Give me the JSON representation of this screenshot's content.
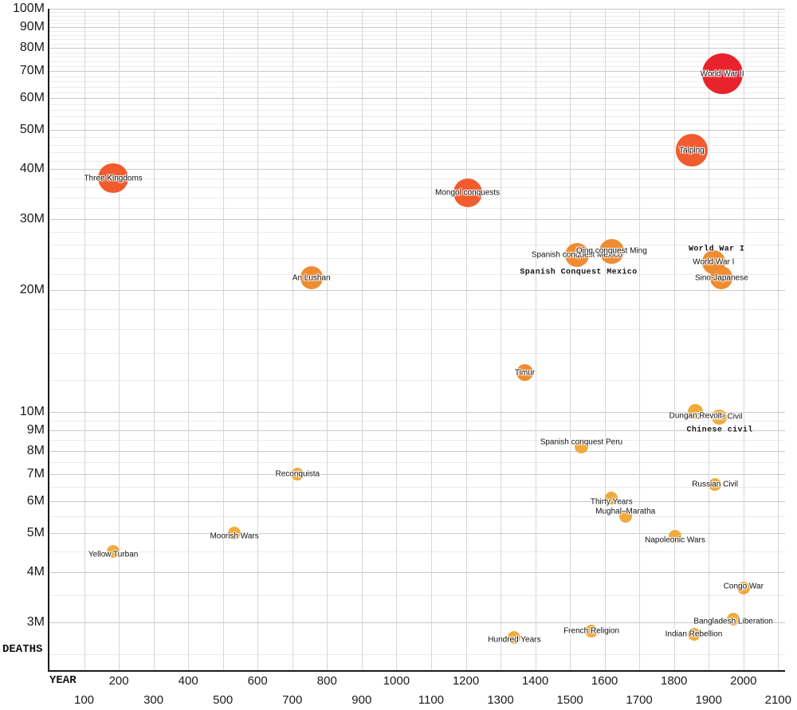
{
  "chart_data": {
    "type": "scatter",
    "subtype": "bubble",
    "title": "",
    "xlabel": "YEAR",
    "ylabel": "DEATHS",
    "grid": true,
    "x_axis": {
      "scale": "linear",
      "min_year": 0,
      "max_year": 2120,
      "gridline_step_years": 100,
      "ticks_upper_row": [
        200,
        400,
        600,
        800,
        1000,
        1200,
        1400,
        1600,
        1800,
        2000
      ],
      "ticks_lower_row": [
        100,
        300,
        500,
        700,
        900,
        1100,
        1300,
        1500,
        1700,
        1900,
        2100
      ]
    },
    "y_axis": {
      "scale": "log",
      "units": "deaths, millions",
      "min_value_m": 2.28,
      "max_value_m": 100,
      "ticks": [
        {
          "label": "100M",
          "value": 100
        },
        {
          "label": "90M",
          "value": 90
        },
        {
          "label": "80M",
          "value": 80
        },
        {
          "label": "70M",
          "value": 70
        },
        {
          "label": "60M",
          "value": 60
        },
        {
          "label": "50M",
          "value": 50
        },
        {
          "label": "40M",
          "value": 40
        },
        {
          "label": "30M",
          "value": 30
        },
        {
          "label": "20M",
          "value": 20
        },
        {
          "label": "10M",
          "value": 10
        },
        {
          "label": "9M",
          "value": 9
        },
        {
          "label": "8M",
          "value": 8
        },
        {
          "label": "7M",
          "value": 7
        },
        {
          "label": "6M",
          "value": 6
        },
        {
          "label": "5M",
          "value": 5
        },
        {
          "label": "4M",
          "value": 4
        },
        {
          "label": "3M",
          "value": 3
        }
      ]
    },
    "palette": {
      "red": "#e8232d",
      "orange_red": "#f15b2d",
      "orange": "#ef8c31",
      "amber": "#f0aa3d"
    },
    "color_rule": "deaths>=60M red; >=30M orange_red; >=12M orange; else amber",
    "points": [
      {
        "label": "Three Kingdoms",
        "year": 184,
        "deaths_m": 38
      },
      {
        "label": "Yellow Turban",
        "year": 184,
        "deaths_m": 4.5,
        "label_dy": 4
      },
      {
        "label": "Moorish Wars",
        "year": 533,
        "deaths_m": 5.0,
        "label_dy": 4
      },
      {
        "label": "Reconquista",
        "year": 715,
        "deaths_m": 7.0
      },
      {
        "label": "An Lushan",
        "year": 755,
        "deaths_m": 21.5
      },
      {
        "label": "Mongol conquests",
        "year": 1205,
        "deaths_m": 35
      },
      {
        "label": "Hundred Years",
        "year": 1340,
        "deaths_m": 2.75,
        "label_dy": 3
      },
      {
        "label": "Timur",
        "year": 1370,
        "deaths_m": 12.5
      },
      {
        "label": "Spanish conquest Mexico",
        "year": 1520,
        "deaths_m": 24.5
      },
      {
        "label": "Spanish conquest Peru",
        "year": 1533,
        "deaths_m": 8.2,
        "label_dy": -5
      },
      {
        "label": "French Religion",
        "year": 1562,
        "deaths_m": 2.85
      },
      {
        "label": "Qing conquest Ming",
        "year": 1620,
        "deaths_m": 25
      },
      {
        "label": "Thirty Years",
        "year": 1620,
        "deaths_m": 6.1,
        "label_dy": 5
      },
      {
        "label": "Mughal–Maratha",
        "year": 1660,
        "deaths_m": 5.5,
        "label_dy": -6
      },
      {
        "label": "Napoleonic Wars",
        "year": 1803,
        "deaths_m": 4.9,
        "label_dy": 5
      },
      {
        "label": "Taiping",
        "year": 1851,
        "deaths_m": 44.5
      },
      {
        "label": "Indian Rebellion",
        "year": 1857,
        "deaths_m": 2.8
      },
      {
        "label": "Chinese Civil",
        "year": 1930,
        "deaths_m": 9.7
      },
      {
        "label": "Dungan Revolt",
        "year": 1862,
        "deaths_m": 10.0,
        "label_dy": 5
      },
      {
        "label": "World War I",
        "year": 1914,
        "deaths_m": 23.5
      },
      {
        "label": "Sino-Japanese",
        "year": 1937,
        "deaths_m": 21.5
      },
      {
        "label": "Russian Civil",
        "year": 1918,
        "deaths_m": 6.6
      },
      {
        "label": "World War II",
        "year": 1939,
        "deaths_m": 69
      },
      {
        "label": "Bangladesh Liberation",
        "year": 1971,
        "deaths_m": 3.05,
        "label_dy": 3
      },
      {
        "label": "Congo War",
        "year": 2000,
        "deaths_m": 3.65,
        "label_dy": -2
      }
    ],
    "annotations": [
      {
        "text": "World War I",
        "year": 1923,
        "deaths_m": 25.3
      },
      {
        "text": "Spanish Conquest Mexico",
        "year": 1525,
        "deaths_m": 22.2
      },
      {
        "text": "Chinese civil",
        "year": 1932,
        "deaths_m": 9.0
      }
    ]
  }
}
